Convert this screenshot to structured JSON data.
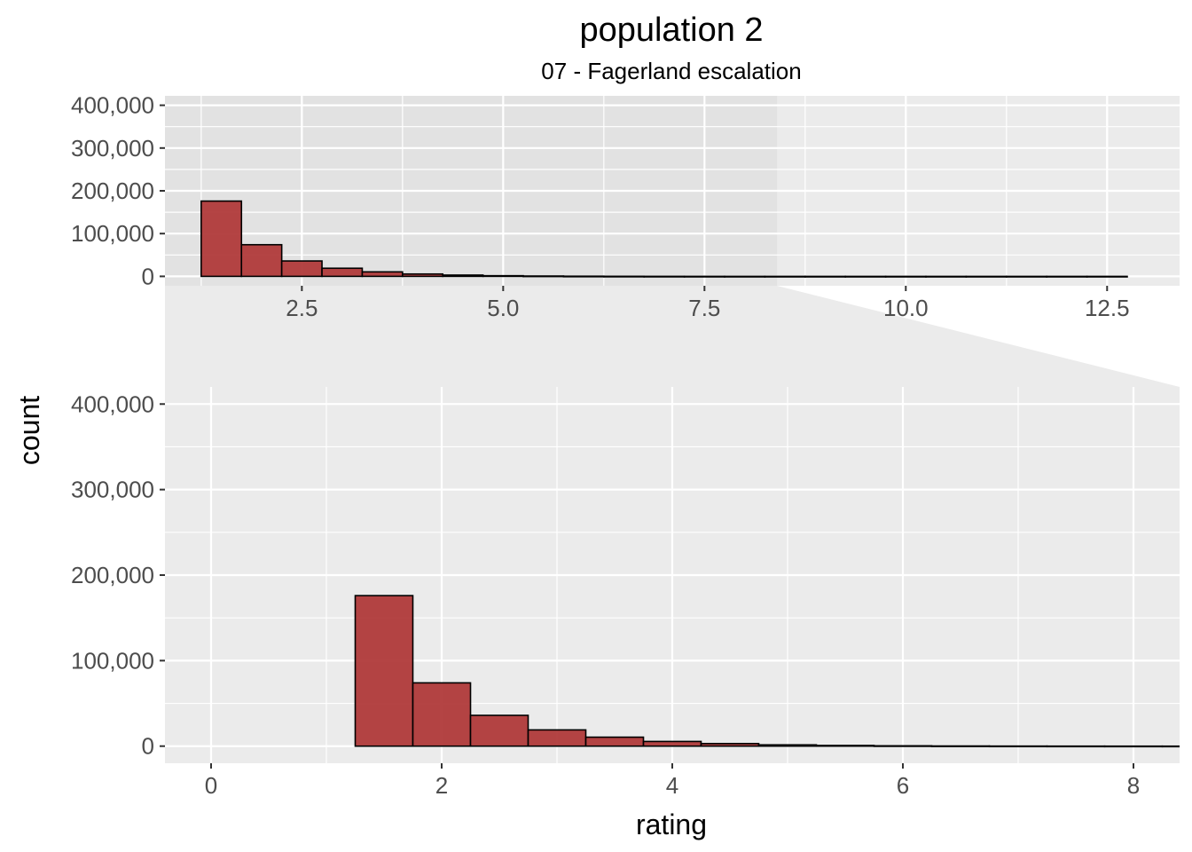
{
  "chart_data": {
    "type": "bar",
    "title": "population 2",
    "subtitle": "07 - Fagerland escalation",
    "xlabel": "rating",
    "ylabel": "count",
    "bin_width": 0.5,
    "bins": [
      {
        "x": 1.5,
        "count": 176000
      },
      {
        "x": 2.0,
        "count": 74000
      },
      {
        "x": 2.5,
        "count": 36000
      },
      {
        "x": 3.0,
        "count": 19000
      },
      {
        "x": 3.5,
        "count": 10500
      },
      {
        "x": 4.0,
        "count": 5500
      },
      {
        "x": 4.5,
        "count": 3000
      },
      {
        "x": 5.0,
        "count": 1500
      },
      {
        "x": 5.5,
        "count": 800
      },
      {
        "x": 6.0,
        "count": 400
      },
      {
        "x": 6.5,
        "count": 200
      },
      {
        "x": 7.0,
        "count": 100
      },
      {
        "x": 7.5,
        "count": 60
      },
      {
        "x": 8.0,
        "count": 30
      },
      {
        "x": 8.5,
        "count": 15
      },
      {
        "x": 9.0,
        "count": 8
      },
      {
        "x": 9.5,
        "count": 4
      },
      {
        "x": 10.0,
        "count": 2
      },
      {
        "x": 10.5,
        "count": 1
      },
      {
        "x": 11.0,
        "count": 1
      },
      {
        "x": 11.5,
        "count": 1
      },
      {
        "x": 12.0,
        "count": 1
      },
      {
        "x": 12.5,
        "count": 1
      }
    ],
    "fill_color": "#b03a3a",
    "overview_panel": {
      "xlim": [
        0.8,
        13.4
      ],
      "ylim": [
        -22000,
        422000
      ],
      "zoom_region_x": [
        0.8,
        8.4
      ],
      "x_ticks": [
        {
          "value": 2.5,
          "label": "2.5"
        },
        {
          "value": 5.0,
          "label": "5.0"
        },
        {
          "value": 7.5,
          "label": "7.5"
        },
        {
          "value": 10.0,
          "label": "10.0"
        },
        {
          "value": 12.5,
          "label": "12.5"
        }
      ],
      "y_ticks": [
        {
          "value": 0,
          "label": "0"
        },
        {
          "value": 100000,
          "label": "100,000"
        },
        {
          "value": 200000,
          "label": "200,000"
        },
        {
          "value": 300000,
          "label": "300,000"
        },
        {
          "value": 400000,
          "label": "400,000"
        }
      ]
    },
    "zoom_panel": {
      "xlim": [
        -0.4,
        8.4
      ],
      "ylim": [
        -20000,
        420000
      ],
      "x_ticks": [
        {
          "value": 0,
          "label": "0"
        },
        {
          "value": 2,
          "label": "2"
        },
        {
          "value": 4,
          "label": "4"
        },
        {
          "value": 6,
          "label": "6"
        },
        {
          "value": 8,
          "label": "8"
        }
      ],
      "y_ticks": [
        {
          "value": 0,
          "label": "0"
        },
        {
          "value": 100000,
          "label": "100,000"
        },
        {
          "value": 200000,
          "label": "200,000"
        },
        {
          "value": 300000,
          "label": "300,000"
        },
        {
          "value": 400000,
          "label": "400,000"
        }
      ]
    },
    "grid": true,
    "legend": "none"
  }
}
